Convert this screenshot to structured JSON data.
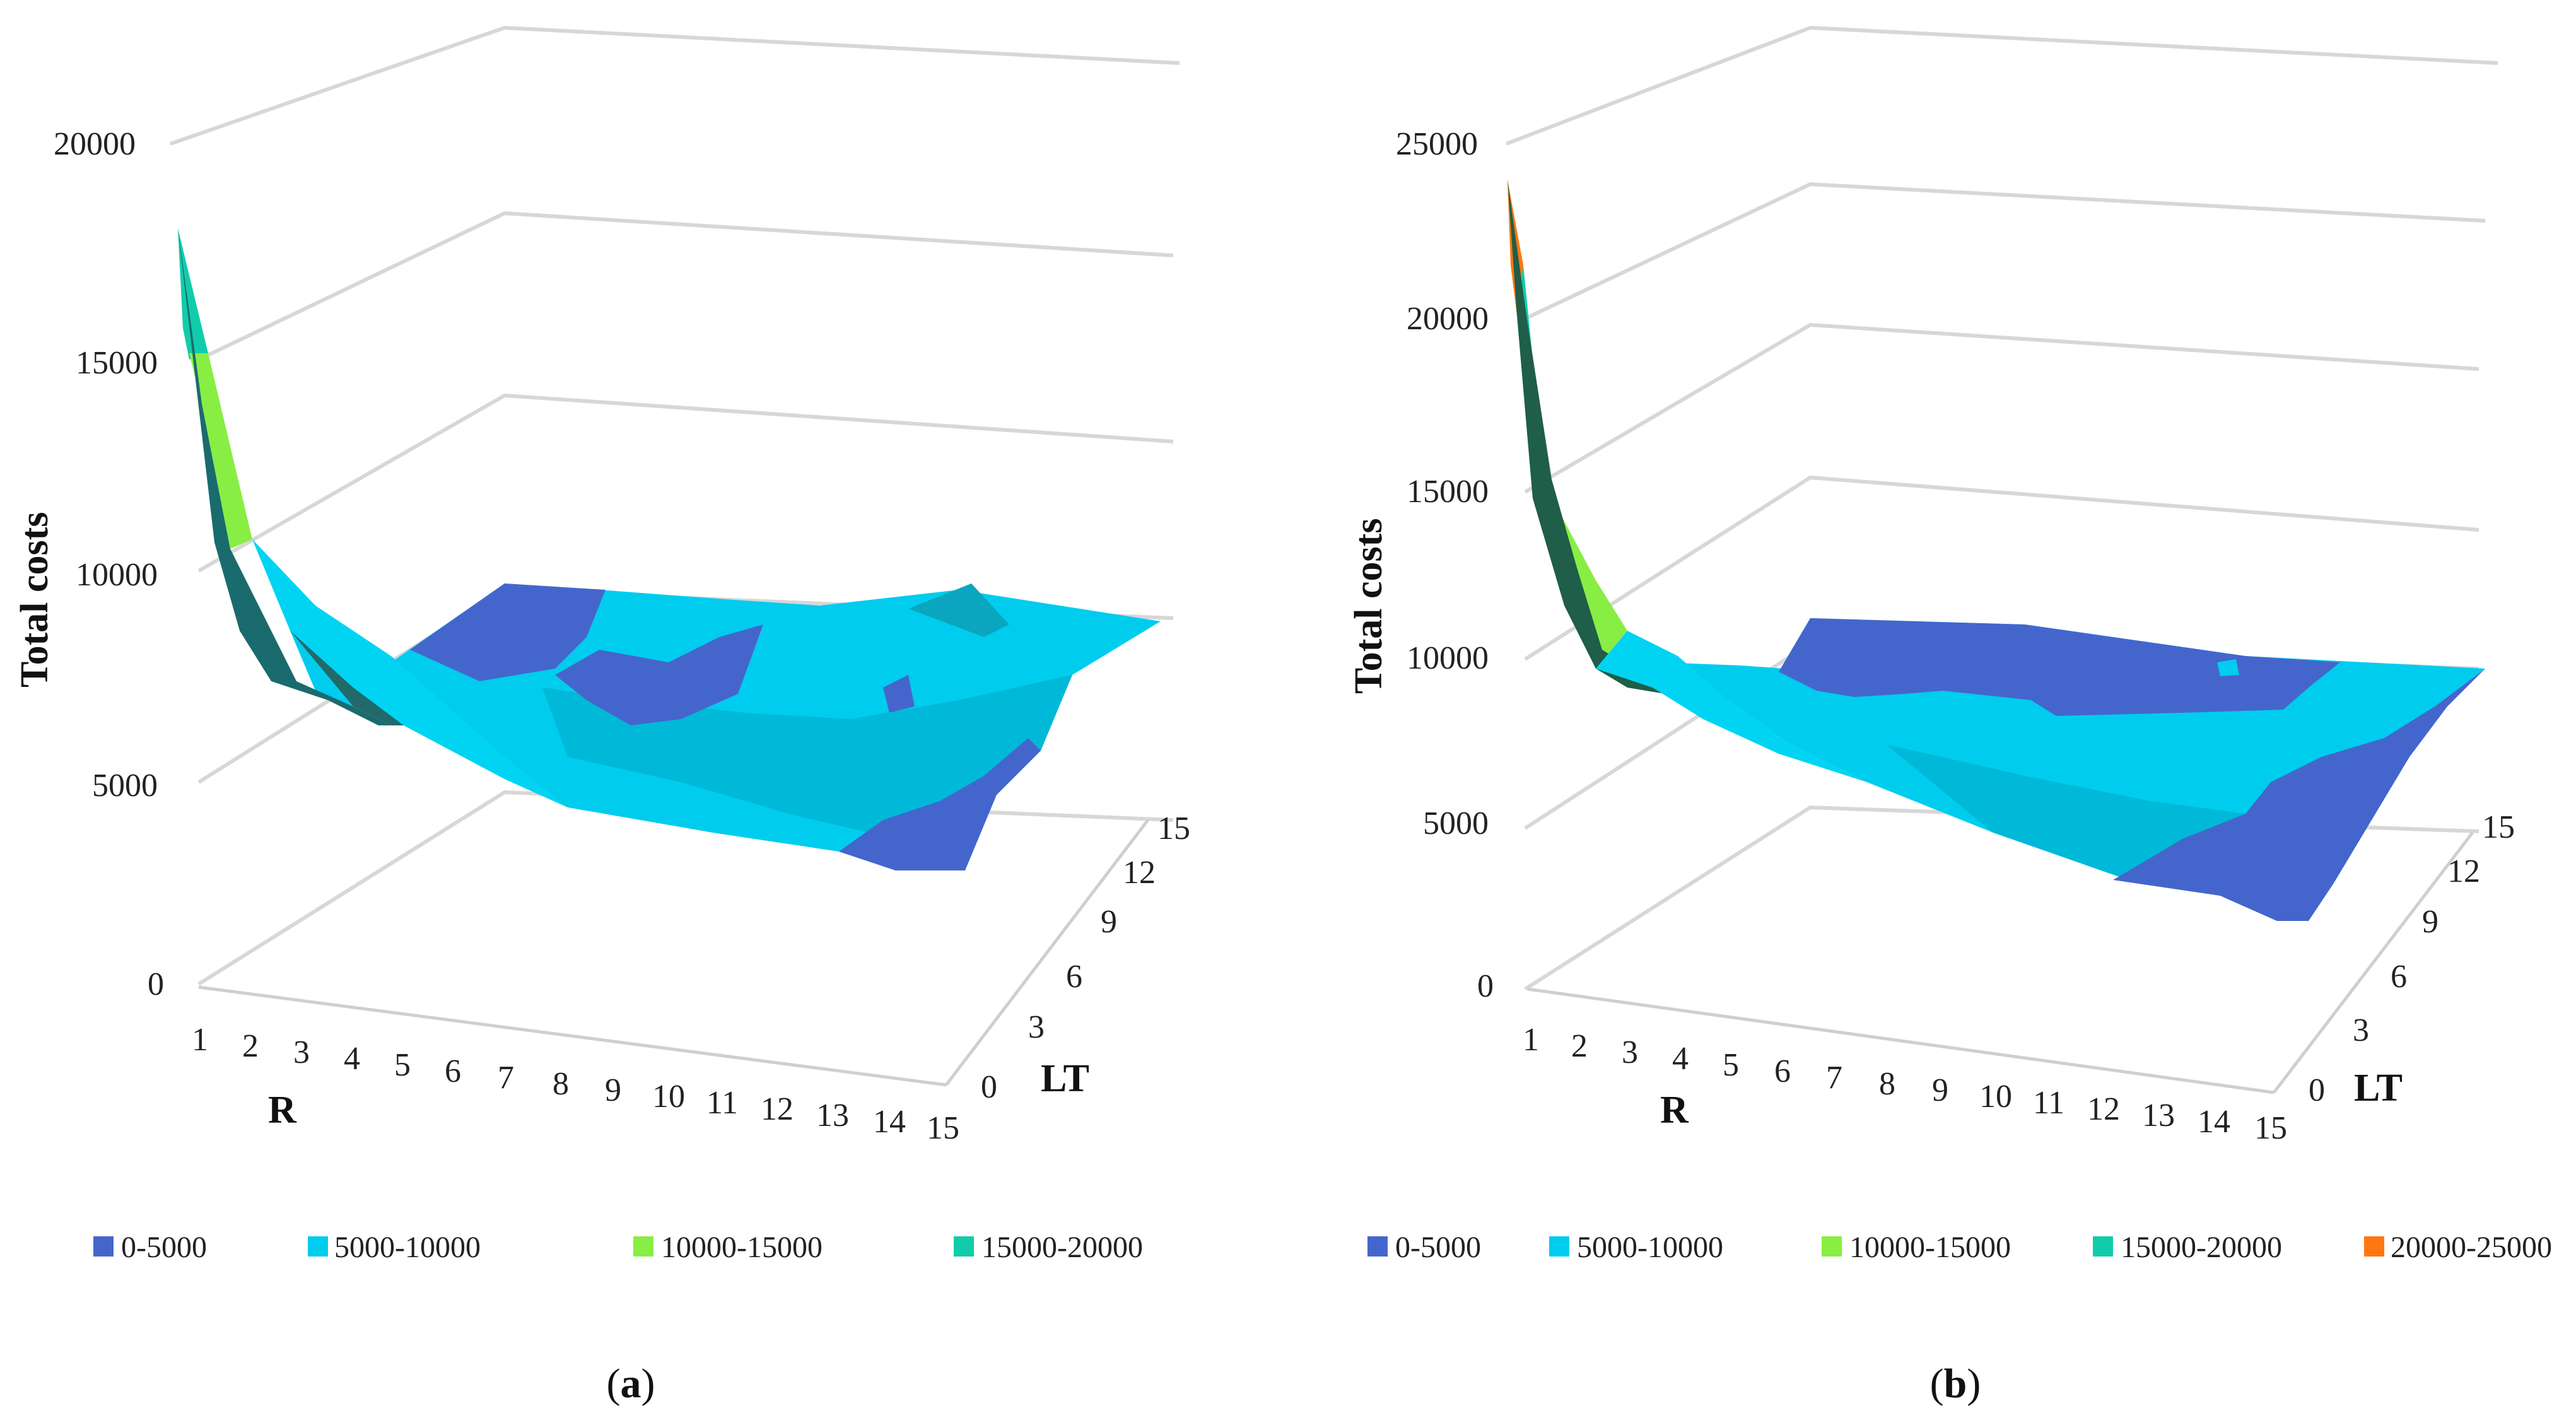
{
  "chart_data": [
    {
      "type": "surface3d",
      "caption_open": "(",
      "caption_letter": "a",
      "caption_close": ")",
      "zlabel": "Total costs",
      "xlabel": "R",
      "ylabel": "LT",
      "z_ticks": [
        "0",
        "5000",
        "10000",
        "15000",
        "20000"
      ],
      "zlim": [
        0,
        20000
      ],
      "x_ticks": [
        "1",
        "2",
        "3",
        "4",
        "5",
        "6",
        "7",
        "8",
        "9",
        "10",
        "11",
        "12",
        "13",
        "14",
        "15"
      ],
      "y_ticks": [
        "0",
        "3",
        "6",
        "9",
        "12",
        "15"
      ],
      "legend": [
        {
          "label": "0-5000",
          "color": "#4466cc"
        },
        {
          "label": "5000-10000",
          "color": "#00ccee"
        },
        {
          "label": "10000-15000",
          "color": "#88ee44"
        },
        {
          "label": "15000-20000",
          "color": "#11ccaa"
        }
      ],
      "front_profile": {
        "R": [
          1,
          2,
          3,
          4,
          5,
          6,
          7,
          8,
          9,
          10,
          11,
          12,
          13,
          14
        ],
        "cost": [
          18000,
          10200,
          8600,
          7500,
          6900,
          6400,
          6000,
          5700,
          5500,
          5300,
          5100,
          4800,
          4200,
          3500
        ]
      }
    },
    {
      "type": "surface3d",
      "caption_open": "(",
      "caption_letter": "b",
      "caption_close": ")",
      "zlabel": "Total costs",
      "xlabel": "R",
      "ylabel": "LT",
      "z_ticks": [
        "0",
        "5000",
        "10000",
        "15000",
        "20000",
        "25000"
      ],
      "zlim": [
        0,
        25000
      ],
      "x_ticks": [
        "1",
        "2",
        "3",
        "4",
        "5",
        "6",
        "7",
        "8",
        "9",
        "10",
        "11",
        "12",
        "13",
        "14",
        "15"
      ],
      "y_ticks": [
        "0",
        "3",
        "6",
        "9",
        "12",
        "15"
      ],
      "legend": [
        {
          "label": "0-5000",
          "color": "#4466cc"
        },
        {
          "label": "5000-10000",
          "color": "#00ccee"
        },
        {
          "label": "10000-15000",
          "color": "#88ee44"
        },
        {
          "label": "15000-20000",
          "color": "#11ccaa"
        },
        {
          "label": "20000-25000",
          "color": "#ff7711"
        }
      ],
      "front_profile": {
        "R": [
          1,
          2,
          3,
          4,
          5,
          6,
          7,
          8,
          9,
          10,
          11,
          12,
          13,
          14
        ],
        "cost": [
          23500,
          12500,
          9600,
          8300,
          7400,
          6700,
          6200,
          5800,
          5500,
          5200,
          4900,
          4500,
          3800,
          3000
        ]
      }
    }
  ]
}
